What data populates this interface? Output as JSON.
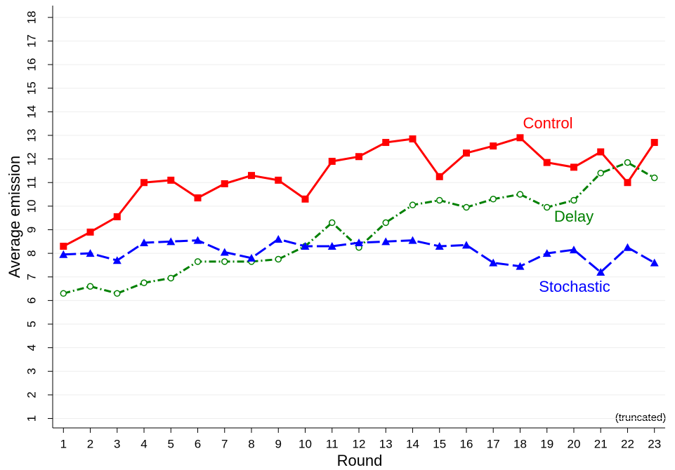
{
  "chart_data": {
    "type": "line",
    "y_label": "Average emission",
    "x_label": "Round",
    "note": "(truncated)",
    "x": [
      1,
      2,
      3,
      4,
      5,
      6,
      7,
      8,
      9,
      10,
      11,
      12,
      13,
      14,
      15,
      16,
      17,
      18,
      19,
      20,
      21,
      22,
      23
    ],
    "xlim": [
      0.6,
      23.4
    ],
    "xticks": [
      1,
      2,
      3,
      4,
      5,
      6,
      7,
      8,
      9,
      10,
      11,
      12,
      13,
      14,
      15,
      16,
      17,
      18,
      19,
      20,
      21,
      22,
      23
    ],
    "ylim": [
      0.6,
      18.5
    ],
    "yticks": [
      1,
      2,
      3,
      4,
      5,
      6,
      7,
      8,
      9,
      10,
      11,
      12,
      13,
      14,
      15,
      16,
      17,
      18
    ],
    "grid": true,
    "series": [
      {
        "name": "Control",
        "color": "#ff0000",
        "marker": "square",
        "dash": "solid",
        "values": [
          8.3,
          8.9,
          9.55,
          11.0,
          11.1,
          10.35,
          10.95,
          11.3,
          11.1,
          10.3,
          11.9,
          12.1,
          12.7,
          12.85,
          11.25,
          12.25,
          12.55,
          12.9,
          11.85,
          11.65,
          12.3,
          11.0,
          12.7
        ]
      },
      {
        "name": "Delay",
        "color": "#008000",
        "marker": "hollow-circle",
        "dash": "dashdot",
        "values": [
          6.3,
          6.6,
          6.3,
          6.75,
          6.95,
          7.65,
          7.65,
          7.65,
          7.75,
          8.3,
          9.3,
          8.25,
          9.3,
          10.05,
          10.25,
          9.95,
          10.3,
          10.5,
          9.95,
          10.25,
          11.4,
          11.85,
          11.2
        ]
      },
      {
        "name": "Stochastic",
        "color": "#0000ff",
        "marker": "triangle",
        "dash": "longdash",
        "values": [
          7.95,
          8.0,
          7.7,
          8.45,
          8.5,
          8.55,
          8.05,
          7.8,
          8.6,
          8.3,
          8.3,
          8.45,
          8.5,
          8.55,
          8.3,
          8.35,
          7.6,
          7.45,
          8.0,
          8.15,
          7.2,
          8.25,
          7.6
        ]
      }
    ]
  }
}
